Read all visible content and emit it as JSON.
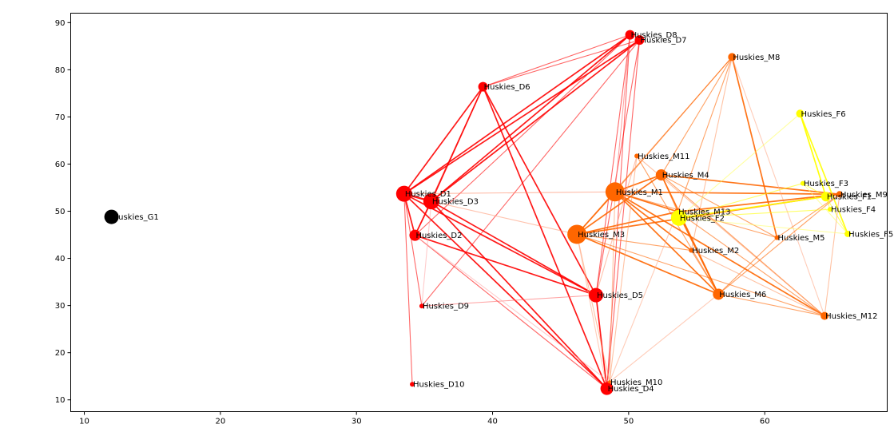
{
  "chart_data": {
    "type": "network",
    "title": "",
    "xlabel": "",
    "ylabel": "",
    "xlim": [
      9,
      69
    ],
    "ylim": [
      7.5,
      92
    ],
    "x_ticks": [
      10,
      20,
      30,
      40,
      50,
      60
    ],
    "y_ticks": [
      10,
      20,
      30,
      40,
      50,
      60,
      70,
      80,
      90
    ],
    "grid": false,
    "group_colors": {
      "G": "#000000",
      "D": "#ff0000",
      "M": "#ff6600",
      "F": "#ffff00"
    },
    "nodes": [
      {
        "name": "Huskies_G1",
        "x": 12.0,
        "y": 48.8,
        "size": 9,
        "group": "G"
      },
      {
        "name": "Huskies_D1",
        "x": 33.5,
        "y": 53.7,
        "size": 10,
        "group": "D"
      },
      {
        "name": "Huskies_D2",
        "x": 34.3,
        "y": 44.9,
        "size": 7,
        "group": "D"
      },
      {
        "name": "Huskies_D3",
        "x": 35.5,
        "y": 52.1,
        "size": 10,
        "group": "D"
      },
      {
        "name": "Huskies_D4",
        "x": 48.4,
        "y": 12.4,
        "size": 8,
        "group": "D"
      },
      {
        "name": "Huskies_D5",
        "x": 47.6,
        "y": 32.2,
        "size": 9,
        "group": "D"
      },
      {
        "name": "Huskies_D6",
        "x": 39.3,
        "y": 76.4,
        "size": 6,
        "group": "D"
      },
      {
        "name": "Huskies_D7",
        "x": 50.8,
        "y": 86.3,
        "size": 6,
        "group": "D"
      },
      {
        "name": "Huskies_D8",
        "x": 50.1,
        "y": 87.4,
        "size": 6,
        "group": "D"
      },
      {
        "name": "Huskies_D9",
        "x": 34.8,
        "y": 29.9,
        "size": 3,
        "group": "D"
      },
      {
        "name": "Huskies_D10",
        "x": 34.1,
        "y": 13.3,
        "size": 3,
        "group": "D"
      },
      {
        "name": "Huskies_M1",
        "x": 49.0,
        "y": 54.1,
        "size": 12,
        "group": "M"
      },
      {
        "name": "Huskies_M2",
        "x": 54.6,
        "y": 41.7,
        "size": 3,
        "group": "M"
      },
      {
        "name": "Huskies_M3",
        "x": 46.2,
        "y": 45.1,
        "size": 12,
        "group": "M"
      },
      {
        "name": "Huskies_M4",
        "x": 52.4,
        "y": 57.7,
        "size": 7,
        "group": "M"
      },
      {
        "name": "Huskies_M5",
        "x": 60.9,
        "y": 44.4,
        "size": 3,
        "group": "M"
      },
      {
        "name": "Huskies_M6",
        "x": 56.6,
        "y": 32.4,
        "size": 7,
        "group": "M"
      },
      {
        "name": "Huskies_M8",
        "x": 57.6,
        "y": 82.7,
        "size": 5,
        "group": "M"
      },
      {
        "name": "Huskies_M9",
        "x": 65.5,
        "y": 53.6,
        "size": 4,
        "group": "M"
      },
      {
        "name": "Huskies_M10",
        "x": 48.6,
        "y": 13.8,
        "size": 2,
        "group": "M"
      },
      {
        "name": "Huskies_M11",
        "x": 50.6,
        "y": 61.7,
        "size": 3,
        "group": "M"
      },
      {
        "name": "Huskies_M12",
        "x": 64.4,
        "y": 27.8,
        "size": 5,
        "group": "M"
      },
      {
        "name": "Huskies_M13",
        "x": 53.6,
        "y": 49.9,
        "size": 4,
        "group": "M"
      },
      {
        "name": "Huskies_F1",
        "x": 64.5,
        "y": 53.1,
        "size": 6,
        "group": "F"
      },
      {
        "name": "Huskies_F2",
        "x": 53.7,
        "y": 48.6,
        "size": 10,
        "group": "F"
      },
      {
        "name": "Huskies_F3",
        "x": 62.8,
        "y": 55.9,
        "size": 3,
        "group": "F"
      },
      {
        "name": "Huskies_F4",
        "x": 64.8,
        "y": 50.4,
        "size": 3,
        "group": "F"
      },
      {
        "name": "Huskies_F5",
        "x": 66.1,
        "y": 45.2,
        "size": 4,
        "group": "F"
      },
      {
        "name": "Huskies_F6",
        "x": 62.6,
        "y": 70.7,
        "size": 5,
        "group": "F"
      }
    ],
    "edges": [
      {
        "source": "Huskies_D1",
        "target": "Huskies_D3",
        "weight": 3,
        "color": "#ff0000"
      },
      {
        "source": "Huskies_D1",
        "target": "Huskies_D2",
        "weight": 2,
        "color": "#ff0000"
      },
      {
        "source": "Huskies_D1",
        "target": "Huskies_D6",
        "weight": 2,
        "color": "#ff0000"
      },
      {
        "source": "Huskies_D1",
        "target": "Huskies_D8",
        "weight": 2,
        "color": "#ff0000"
      },
      {
        "source": "Huskies_D1",
        "target": "Huskies_D7",
        "weight": 2,
        "color": "#ff0000"
      },
      {
        "source": "Huskies_D1",
        "target": "Huskies_D5",
        "weight": 2,
        "color": "#ff0000"
      },
      {
        "source": "Huskies_D1",
        "target": "Huskies_D4",
        "weight": 2,
        "color": "#ff0000"
      },
      {
        "source": "Huskies_D1",
        "target": "Huskies_D9",
        "weight": 1,
        "color": "#ff0000"
      },
      {
        "source": "Huskies_D1",
        "target": "Huskies_D10",
        "weight": 1,
        "color": "#ff0000"
      },
      {
        "source": "Huskies_D3",
        "target": "Huskies_D2",
        "weight": 2,
        "color": "#ff0000"
      },
      {
        "source": "Huskies_D3",
        "target": "Huskies_D6",
        "weight": 2,
        "color": "#ff0000"
      },
      {
        "source": "Huskies_D3",
        "target": "Huskies_D8",
        "weight": 2,
        "color": "#ff0000"
      },
      {
        "source": "Huskies_D3",
        "target": "Huskies_D7",
        "weight": 2,
        "color": "#ff0000"
      },
      {
        "source": "Huskies_D3",
        "target": "Huskies_D5",
        "weight": 2,
        "color": "#ff0000"
      },
      {
        "source": "Huskies_D3",
        "target": "Huskies_D4",
        "weight": 2,
        "color": "#ff0000"
      },
      {
        "source": "Huskies_D2",
        "target": "Huskies_D6",
        "weight": 1,
        "color": "#ff0000"
      },
      {
        "source": "Huskies_D2",
        "target": "Huskies_D8",
        "weight": 1,
        "color": "#ff0000"
      },
      {
        "source": "Huskies_D2",
        "target": "Huskies_D5",
        "weight": 2,
        "color": "#ff0000"
      },
      {
        "source": "Huskies_D2",
        "target": "Huskies_D4",
        "weight": 1,
        "color": "#ff0000"
      },
      {
        "source": "Huskies_D6",
        "target": "Huskies_D8",
        "weight": 1,
        "color": "#ff0000"
      },
      {
        "source": "Huskies_D6",
        "target": "Huskies_D7",
        "weight": 1,
        "color": "#ff0000"
      },
      {
        "source": "Huskies_D6",
        "target": "Huskies_D5",
        "weight": 2,
        "color": "#ff0000"
      },
      {
        "source": "Huskies_D6",
        "target": "Huskies_D4",
        "weight": 2,
        "color": "#ff0000"
      },
      {
        "source": "Huskies_D8",
        "target": "Huskies_D4",
        "weight": 1,
        "color": "#ff0000"
      },
      {
        "source": "Huskies_D7",
        "target": "Huskies_D4",
        "weight": 1,
        "color": "#ff0000"
      },
      {
        "source": "Huskies_D7",
        "target": "Huskies_D5",
        "weight": 1,
        "color": "#ff0000"
      },
      {
        "source": "Huskies_D8",
        "target": "Huskies_D5",
        "weight": 1,
        "color": "#ff0000"
      },
      {
        "source": "Huskies_D9",
        "target": "Huskies_D7",
        "weight": 1,
        "color": "#ff0000"
      },
      {
        "source": "Huskies_D9",
        "target": "Huskies_D5",
        "weight": 1,
        "color": "#ff6666"
      },
      {
        "source": "Huskies_D5",
        "target": "Huskies_D4",
        "weight": 2,
        "color": "#ff0000"
      },
      {
        "source": "Huskies_M1",
        "target": "Huskies_M3",
        "weight": 2,
        "color": "#ff6600"
      },
      {
        "source": "Huskies_M1",
        "target": "Huskies_M4",
        "weight": 2,
        "color": "#ff6600"
      },
      {
        "source": "Huskies_M1",
        "target": "Huskies_M2",
        "weight": 2,
        "color": "#ff6600"
      },
      {
        "source": "Huskies_M1",
        "target": "Huskies_M6",
        "weight": 2,
        "color": "#ff6600"
      },
      {
        "source": "Huskies_M1",
        "target": "Huskies_M12",
        "weight": 2,
        "color": "#ff6600"
      },
      {
        "source": "Huskies_M1",
        "target": "Huskies_M9",
        "weight": 2,
        "color": "#ff6600"
      },
      {
        "source": "Huskies_M1",
        "target": "Huskies_M5",
        "weight": 1,
        "color": "#ff6600"
      },
      {
        "source": "Huskies_M1",
        "target": "Huskies_M8",
        "weight": 1,
        "color": "#ff6600"
      },
      {
        "source": "Huskies_M1",
        "target": "Huskies_M13",
        "weight": 2,
        "color": "#ff6600"
      },
      {
        "source": "Huskies_M1",
        "target": "Huskies_M10",
        "weight": 1,
        "color": "#ff9966"
      },
      {
        "source": "Huskies_M3",
        "target": "Huskies_M4",
        "weight": 2,
        "color": "#ff6600"
      },
      {
        "source": "Huskies_M3",
        "target": "Huskies_M6",
        "weight": 2,
        "color": "#ff6600"
      },
      {
        "source": "Huskies_M3",
        "target": "Huskies_M12",
        "weight": 1,
        "color": "#ff6600"
      },
      {
        "source": "Huskies_M3",
        "target": "Huskies_M9",
        "weight": 2,
        "color": "#ff6600"
      },
      {
        "source": "Huskies_M3",
        "target": "Huskies_M8",
        "weight": 1,
        "color": "#ff6600"
      },
      {
        "source": "Huskies_M3",
        "target": "Huskies_M13",
        "weight": 2,
        "color": "#ff6600"
      },
      {
        "source": "Huskies_M3",
        "target": "Huskies_M2",
        "weight": 1,
        "color": "#ff6600"
      },
      {
        "source": "Huskies_M3",
        "target": "Huskies_M10",
        "weight": 1,
        "color": "#ff9966"
      },
      {
        "source": "Huskies_M4",
        "target": "Huskies_M6",
        "weight": 2,
        "color": "#ff6600"
      },
      {
        "source": "Huskies_M4",
        "target": "Huskies_M12",
        "weight": 1,
        "color": "#ff6600"
      },
      {
        "source": "Huskies_M4",
        "target": "Huskies_M9",
        "weight": 2,
        "color": "#ff6600"
      },
      {
        "source": "Huskies_M4",
        "target": "Huskies_M8",
        "weight": 1,
        "color": "#ff6600"
      },
      {
        "source": "Huskies_M4",
        "target": "Huskies_M5",
        "weight": 1,
        "color": "#ff6600"
      },
      {
        "source": "Huskies_M4",
        "target": "Huskies_M13",
        "weight": 1,
        "color": "#ff6600"
      },
      {
        "source": "Huskies_M11",
        "target": "Huskies_M6",
        "weight": 1,
        "color": "#ff6600"
      },
      {
        "source": "Huskies_M11",
        "target": "Huskies_M12",
        "weight": 1,
        "color": "#ff9966"
      },
      {
        "source": "Huskies_M11",
        "target": "Huskies_M10",
        "weight": 1,
        "color": "#ff9966"
      },
      {
        "source": "Huskies_M8",
        "target": "Huskies_M5",
        "weight": 2,
        "color": "#ff6600"
      },
      {
        "source": "Huskies_M8",
        "target": "Huskies_M13",
        "weight": 1,
        "color": "#ff6600"
      },
      {
        "source": "Huskies_M8",
        "target": "Huskies_M12",
        "weight": 1,
        "color": "#ffaa88"
      },
      {
        "source": "Huskies_M8",
        "target": "Huskies_M2",
        "weight": 1,
        "color": "#ff9966"
      },
      {
        "source": "Huskies_M5",
        "target": "Huskies_M6",
        "weight": 1,
        "color": "#ff6600"
      },
      {
        "source": "Huskies_M5",
        "target": "Huskies_M9",
        "weight": 1,
        "color": "#ff6600"
      },
      {
        "source": "Huskies_M6",
        "target": "Huskies_M12",
        "weight": 1,
        "color": "#ff6600"
      },
      {
        "source": "Huskies_M6",
        "target": "Huskies_M13",
        "weight": 2,
        "color": "#ff6600"
      },
      {
        "source": "Huskies_M6",
        "target": "Huskies_M9",
        "weight": 1,
        "color": "#ff6600"
      },
      {
        "source": "Huskies_M6",
        "target": "Huskies_M10",
        "weight": 1,
        "color": "#ffaa88"
      },
      {
        "source": "Huskies_M13",
        "target": "Huskies_M12",
        "weight": 1,
        "color": "#ff6600"
      },
      {
        "source": "Huskies_M13",
        "target": "Huskies_M9",
        "weight": 2,
        "color": "#ff6600"
      },
      {
        "source": "Huskies_M9",
        "target": "Huskies_M12",
        "weight": 1,
        "color": "#ff9966"
      },
      {
        "source": "Huskies_M2",
        "target": "Huskies_M12",
        "weight": 1,
        "color": "#ff9966"
      },
      {
        "source": "Huskies_M2",
        "target": "Huskies_M6",
        "weight": 1,
        "color": "#ff6600"
      },
      {
        "source": "Huskies_F6",
        "target": "Huskies_F1",
        "weight": 2,
        "color": "#ffff00"
      },
      {
        "source": "Huskies_F6",
        "target": "Huskies_F4",
        "weight": 1,
        "color": "#ffff00"
      },
      {
        "source": "Huskies_F6",
        "target": "Huskies_F5",
        "weight": 2,
        "color": "#ffff00"
      },
      {
        "source": "Huskies_F6",
        "target": "Huskies_F2",
        "weight": 1,
        "color": "#ffff66"
      },
      {
        "source": "Huskies_F2",
        "target": "Huskies_F1",
        "weight": 2,
        "color": "#ffff00"
      },
      {
        "source": "Huskies_F2",
        "target": "Huskies_F3",
        "weight": 1,
        "color": "#ffff00"
      },
      {
        "source": "Huskies_F2",
        "target": "Huskies_F4",
        "weight": 1,
        "color": "#ffff00"
      },
      {
        "source": "Huskies_F2",
        "target": "Huskies_F5",
        "weight": 1,
        "color": "#ffff66"
      },
      {
        "source": "Huskies_F1",
        "target": "Huskies_F3",
        "weight": 1,
        "color": "#ffff00"
      },
      {
        "source": "Huskies_F1",
        "target": "Huskies_F5",
        "weight": 1,
        "color": "#ffff00"
      },
      {
        "source": "Huskies_F3",
        "target": "Huskies_F5",
        "weight": 1,
        "color": "#ffff66"
      },
      {
        "source": "Huskies_D1",
        "target": "Huskies_M1",
        "weight": 1,
        "color": "#ff8866"
      },
      {
        "source": "Huskies_D3",
        "target": "Huskies_M3",
        "weight": 1,
        "color": "#ff9977"
      },
      {
        "source": "Huskies_D2",
        "target": "Huskies_M10",
        "weight": 1,
        "color": "#ffaaaa"
      },
      {
        "source": "Huskies_D5",
        "target": "Huskies_M11",
        "weight": 1,
        "color": "#ff9977"
      },
      {
        "source": "Huskies_D4",
        "target": "Huskies_M13",
        "weight": 1,
        "color": "#ffaa88"
      },
      {
        "source": "Huskies_D4",
        "target": "Huskies_M3",
        "weight": 1,
        "color": "#ffaa88"
      },
      {
        "source": "Huskies_D9",
        "target": "Huskies_D3",
        "weight": 1,
        "color": "#ffaaaa"
      },
      {
        "source": "Huskies_D8",
        "target": "Huskies_M1",
        "weight": 1,
        "color": "#ff6666"
      }
    ]
  }
}
